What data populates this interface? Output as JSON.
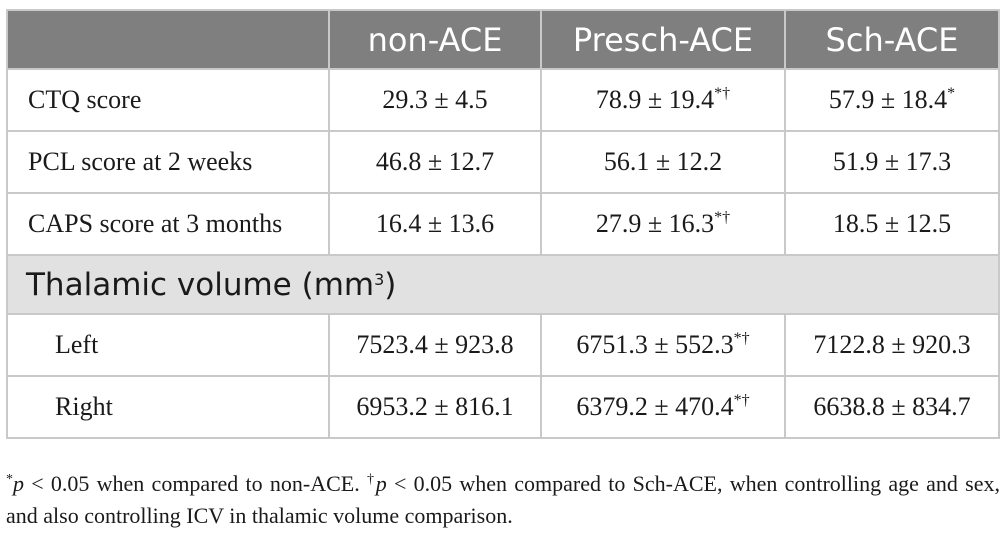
{
  "header": {
    "col1": "non-ACE",
    "col2": "Presch-ACE",
    "col3": "Sch-ACE"
  },
  "rows": [
    {
      "label": "CTQ score",
      "v1": "29.3 ± 4.5",
      "v2": "78.9 ± 19.4",
      "v2_sup": "*†",
      "v3": "57.9 ± 18.4",
      "v3_sup": "*"
    },
    {
      "label": "PCL score at 2 weeks",
      "v1": "46.8 ± 12.7",
      "v2": "56.1 ± 12.2",
      "v3": "51.9 ± 17.3"
    },
    {
      "label": "CAPS score at 3 months",
      "v1": "16.4 ± 13.6",
      "v2": "27.9 ± 16.3",
      "v2_sup": "*†",
      "v3": "18.5 ± 12.5"
    }
  ],
  "section": {
    "title": "Thalamic volume (mm",
    "title_sup": "3",
    "title_end": ")"
  },
  "volume_rows": [
    {
      "label": "Left",
      "v1": "7523.4 ± 923.8",
      "v2": "6751.3 ± 552.3",
      "v2_sup": "*†",
      "v3": "7122.8 ± 920.3"
    },
    {
      "label": "Right",
      "v1": "6953.2 ± 816.1",
      "v2": "6379.2 ± 470.4",
      "v2_sup": "*†",
      "v3": "6638.8 ± 834.7"
    }
  ],
  "footnote": {
    "mark1": "*",
    "p1": "p",
    "text1": " < 0.05 when compared to non-ACE. ",
    "mark2": "†",
    "p2": "p",
    "text2": " < 0.05 when compared to Sch-ACE, when controlling age and sex, and also controlling ICV in thalamic volume comparison."
  }
}
